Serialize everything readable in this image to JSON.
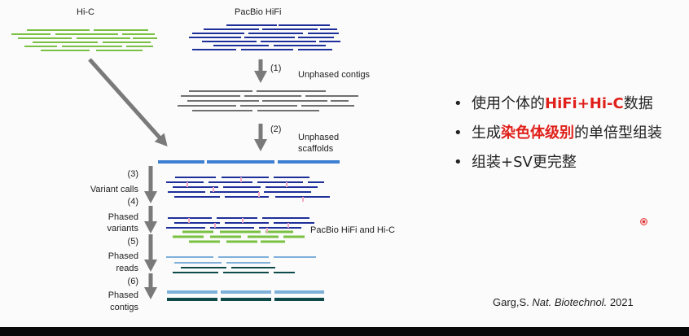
{
  "diagram": {
    "inputs": {
      "hic_label": "Hi-C",
      "hifi_label": "PacBio HiFi"
    },
    "steps": [
      {
        "number": "(1)",
        "label": "Unphased contigs"
      },
      {
        "number": "(2)",
        "label": "Unphased scaffolds",
        "lines": [
          "Unphased",
          "scaffolds"
        ]
      },
      {
        "number": "(3)",
        "label": "Variant calls"
      },
      {
        "number": "(4)",
        "label": "Phased variants",
        "lines": [
          "Phased",
          "variants"
        ]
      },
      {
        "number": "(5)",
        "label": "Phased reads",
        "lines": [
          "Phased",
          "reads"
        ]
      },
      {
        "number": "(6)",
        "label": "Phased contigs",
        "lines": [
          "Phased",
          "contigs"
        ]
      }
    ],
    "combined_label": "PacBio HiFi and Hi-C",
    "colors": {
      "hic": "#7ac143",
      "hifi": "#1f2f9a",
      "contig": "#707070",
      "scaffold": "#3d7fd0",
      "arrow": "#7a7a7a",
      "variant": "#f4a9c4",
      "hap1": "#7fb0da",
      "hap2": "#0f4a4a"
    }
  },
  "bullets": [
    {
      "segments": [
        {
          "text": "使用个体的"
        },
        {
          "text": "HiFi+Hi-C",
          "highlight": true
        },
        {
          "text": "数据"
        }
      ]
    },
    {
      "segments": [
        {
          "text": "生成"
        },
        {
          "text": "染色体级别",
          "highlight": true
        },
        {
          "text": "的单倍型组装"
        }
      ]
    },
    {
      "segments": [
        {
          "text": "组装+SV更完整"
        }
      ]
    }
  ],
  "citation": {
    "author": "Garg,S.",
    "journal": "Nat. Biotechnol.",
    "year": "2021"
  },
  "highlight_color": "#e0201a"
}
